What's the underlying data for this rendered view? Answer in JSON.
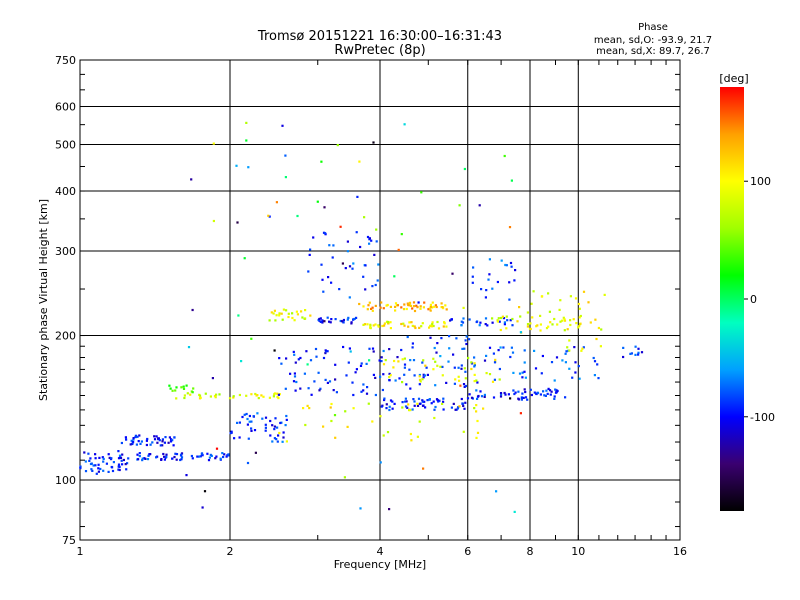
{
  "chart_data": {
    "type": "scatter",
    "title": "Tromsø 20151221 16:30:00–16:31:43",
    "subtitle": "RwPretec (8p)",
    "xlabel": "Frequency [MHz]",
    "ylabel": "Stationary phase Virtual Height [km]",
    "x_scale": "log",
    "y_scale": "log",
    "xlim": [
      1,
      16
    ],
    "ylim": [
      75,
      750
    ],
    "x_ticks": [
      1,
      2,
      4,
      6,
      8,
      10,
      16
    ],
    "x_tick_labels": [
      "1",
      "2",
      "4",
      "6",
      "8",
      "10",
      "16"
    ],
    "y_ticks": [
      75,
      100,
      200,
      300,
      400,
      500,
      600,
      750
    ],
    "y_tick_labels": [
      "75",
      "100",
      "200",
      "300",
      "400",
      "500",
      "600",
      "750"
    ],
    "grid": true,
    "colorbar": {
      "label": "[deg]",
      "range": [
        -180,
        180
      ],
      "ticks": [
        100,
        0,
        -100
      ],
      "tick_labels": [
        "100",
        "0",
        "-100"
      ],
      "colors": [
        "#000000",
        "#3a0070",
        "#0000ff",
        "#00a0ff",
        "#00ffc0",
        "#00ff00",
        "#a0ff00",
        "#ffff00",
        "#ffa000",
        "#ff0000"
      ]
    },
    "stats": {
      "heading": "Phase",
      "line_o": "mean, sd,O: -93.9, 21.7",
      "line_x": "mean, sd,X: 89.7, 26.7"
    },
    "point_clusters": [
      {
        "x": [
          1.0,
          1.25
        ],
        "y": [
          103,
          115
        ],
        "phase": -100,
        "n": 55
      },
      {
        "x": [
          1.2,
          1.55
        ],
        "y": [
          118,
          124
        ],
        "phase": -105,
        "n": 45
      },
      {
        "x": [
          1.3,
          2.0
        ],
        "y": [
          110,
          114
        ],
        "phase": -100,
        "n": 60
      },
      {
        "x": [
          2.0,
          2.6
        ],
        "y": [
          120,
          138
        ],
        "phase": -95,
        "n": 45
      },
      {
        "x": [
          1.55,
          2.6
        ],
        "y": [
          148,
          152
        ],
        "phase": 85,
        "n": 35
      },
      {
        "x": [
          1.5,
          1.7
        ],
        "y": [
          152,
          158
        ],
        "phase": 40,
        "n": 12
      },
      {
        "x": [
          2.4,
          3.0
        ],
        "y": [
          215,
          228
        ],
        "phase": 90,
        "n": 25
      },
      {
        "x": [
          3.0,
          3.6
        ],
        "y": [
          212,
          218
        ],
        "phase": -100,
        "n": 25
      },
      {
        "x": [
          3.7,
          5.5
        ],
        "y": [
          225,
          235
        ],
        "phase": 130,
        "n": 55
      },
      {
        "x": [
          3.7,
          5.5
        ],
        "y": [
          207,
          214
        ],
        "phase": 100,
        "n": 45
      },
      {
        "x": [
          5.5,
          7.5
        ],
        "y": [
          210,
          218
        ],
        "phase": -90,
        "n": 25
      },
      {
        "x": [
          6.5,
          11.0
        ],
        "y": [
          205,
          220
        ],
        "phase": 90,
        "n": 40
      },
      {
        "x": [
          2.5,
          4.5
        ],
        "y": [
          150,
          190
        ],
        "phase": -100,
        "n": 80
      },
      {
        "x": [
          4.0,
          6.0
        ],
        "y": [
          140,
          148
        ],
        "phase": -100,
        "n": 60
      },
      {
        "x": [
          6.0,
          9.5
        ],
        "y": [
          147,
          155
        ],
        "phase": -100,
        "n": 60
      },
      {
        "x": [
          4.5,
          6.5
        ],
        "y": [
          155,
          200
        ],
        "phase": -95,
        "n": 50
      },
      {
        "x": [
          4.0,
          7.0
        ],
        "y": [
          160,
          180
        ],
        "phase": 90,
        "n": 40
      },
      {
        "x": [
          6.5,
          11.0
        ],
        "y": [
          160,
          190
        ],
        "phase": -90,
        "n": 45
      },
      {
        "x": [
          2.8,
          4.0
        ],
        "y": [
          240,
          330
        ],
        "phase": -95,
        "n": 40
      },
      {
        "x": [
          6.0,
          7.5
        ],
        "y": [
          230,
          290
        ],
        "phase": -90,
        "n": 20
      },
      {
        "x": [
          7.5,
          11.5
        ],
        "y": [
          185,
          250
        ],
        "phase": 95,
        "n": 35
      },
      {
        "x": [
          2.5,
          6.5
        ],
        "y": [
          120,
          145
        ],
        "phase": 95,
        "n": 35
      },
      {
        "x": [
          1.6,
          8.0
        ],
        "y": [
          85,
          560
        ],
        "phase": 0,
        "n": 80
      },
      {
        "x": [
          11.0,
          13.5
        ],
        "y": [
          180,
          195
        ],
        "phase": -100,
        "n": 10
      }
    ]
  }
}
